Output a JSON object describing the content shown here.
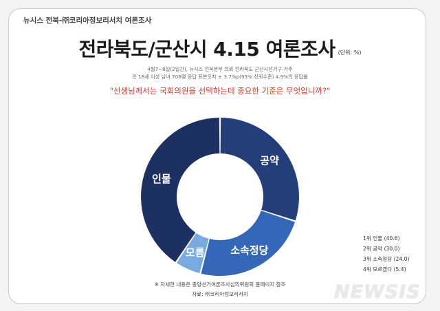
{
  "header": {
    "source": "뉴시스 전북-㈜코리아정보리서치 여론조사"
  },
  "title": "전라북도/군산시 4.15 여론조사",
  "unit": "(단위: %)",
  "survey": {
    "line1": "4월7~8일(2일간), 뉴시스 전북본부 의뢰 전라북도 군산시선거구 거주",
    "line2": "만 18세 이상 남녀 706명 응답 표본오차 ± 3.7%p(95% 신뢰수준) 4.9%의 응답률"
  },
  "question": "\"선생님께서는 국회의원을 선택하는데 중요한 기준은 무엇입니까?\"",
  "chart_data": {
    "type": "pie",
    "donut": true,
    "categories": [
      "공약",
      "소속정당",
      "모름",
      "인물"
    ],
    "values": [
      30.0,
      24.0,
      5.4,
      40.6
    ],
    "colors": [
      "#253d78",
      "#3566b8",
      "#78aadf",
      "#1e3061"
    ]
  },
  "ranks": [
    "1위 인물 (40.6)",
    "2위 공약 (30.0)",
    "3위 소속정당 (24.0)",
    "4위 모르겠다 (5.4)"
  ],
  "footnotes": {
    "note": "※ 자세한 내용은 중앙선거여론조사심의위원회 홈페이지 참조",
    "source": "자료: ㈜코리아정보리서치"
  },
  "watermark": "NEWSIS"
}
